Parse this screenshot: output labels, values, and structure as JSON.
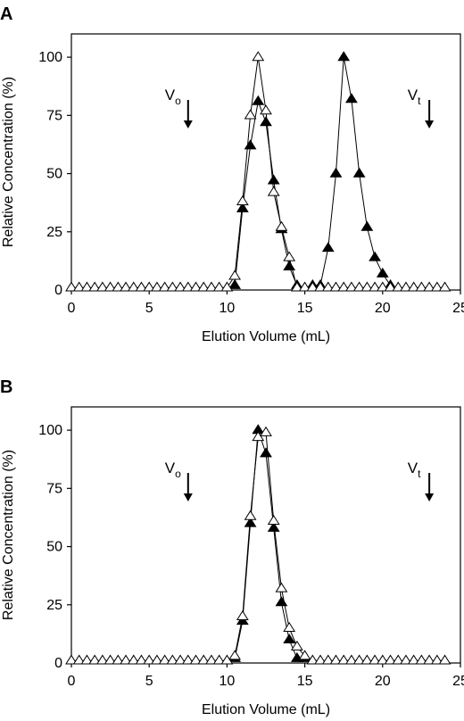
{
  "chart_data": [
    {
      "type": "line",
      "panel_label": "A",
      "xlabel": "Elution Volume (mL)",
      "ylabel": "Relative Concentration (%)",
      "xlim": [
        0,
        25
      ],
      "ylim": [
        0,
        110
      ],
      "x_ticks": [
        0,
        5,
        10,
        15,
        20,
        25
      ],
      "y_ticks": [
        0,
        25,
        50,
        75,
        100
      ],
      "grid": false,
      "legend": "none",
      "annotations": [
        {
          "main": "V",
          "sub": "o",
          "x": 7.5
        },
        {
          "main": "V",
          "sub": "t",
          "x": 23.0
        }
      ],
      "series": [
        {
          "marker": "filled-triangle",
          "points": [
            [
              10.5,
              2
            ],
            [
              11.0,
              35
            ],
            [
              11.5,
              62
            ],
            [
              12.0,
              81
            ],
            [
              12.5,
              72
            ],
            [
              13.0,
              47
            ],
            [
              13.5,
              26
            ],
            [
              14.0,
              10
            ],
            [
              14.5,
              2
            ],
            [
              15.5,
              2
            ],
            [
              16.0,
              2
            ],
            [
              16.5,
              18
            ],
            [
              17.0,
              50
            ],
            [
              17.5,
              100
            ],
            [
              18.0,
              82
            ],
            [
              18.5,
              50
            ],
            [
              19.0,
              27
            ],
            [
              19.5,
              14
            ],
            [
              20.0,
              7
            ],
            [
              20.5,
              2
            ]
          ]
        },
        {
          "marker": "open-triangle",
          "points": [
            [
              0.0,
              1
            ],
            [
              0.5,
              1
            ],
            [
              1.0,
              1
            ],
            [
              1.5,
              1
            ],
            [
              2.0,
              1
            ],
            [
              2.5,
              1
            ],
            [
              3.0,
              1
            ],
            [
              3.5,
              1
            ],
            [
              4.0,
              1
            ],
            [
              4.5,
              1
            ],
            [
              5.0,
              1
            ],
            [
              5.5,
              1
            ],
            [
              6.0,
              1
            ],
            [
              6.5,
              1
            ],
            [
              7.0,
              1
            ],
            [
              7.5,
              1
            ],
            [
              8.0,
              1
            ],
            [
              8.5,
              1
            ],
            [
              9.0,
              1
            ],
            [
              9.5,
              1
            ],
            [
              10.0,
              1
            ],
            [
              10.5,
              6
            ],
            [
              11.0,
              38
            ],
            [
              11.5,
              75
            ],
            [
              12.0,
              100
            ],
            [
              12.5,
              77
            ],
            [
              13.0,
              42
            ],
            [
              13.5,
              27
            ],
            [
              14.0,
              14
            ],
            [
              14.5,
              1
            ],
            [
              15.0,
              1
            ],
            [
              15.5,
              1
            ],
            [
              16.0,
              1
            ],
            [
              16.5,
              1
            ],
            [
              17.0,
              1
            ],
            [
              17.5,
              1
            ],
            [
              18.0,
              1
            ],
            [
              18.5,
              1
            ],
            [
              19.0,
              1
            ],
            [
              19.5,
              1
            ],
            [
              20.0,
              1
            ],
            [
              20.5,
              1
            ],
            [
              21.0,
              1
            ],
            [
              21.5,
              1
            ],
            [
              22.0,
              1
            ],
            [
              22.5,
              1
            ],
            [
              23.0,
              1
            ],
            [
              23.5,
              1
            ],
            [
              24.0,
              1
            ]
          ]
        }
      ]
    },
    {
      "type": "line",
      "panel_label": "B",
      "xlabel": "Elution Volume (mL)",
      "ylabel": "Relative Concentration (%)",
      "xlim": [
        0,
        25
      ],
      "ylim": [
        0,
        110
      ],
      "x_ticks": [
        0,
        5,
        10,
        15,
        20,
        25
      ],
      "y_ticks": [
        0,
        25,
        50,
        75,
        100
      ],
      "grid": false,
      "legend": "none",
      "annotations": [
        {
          "main": "V",
          "sub": "o",
          "x": 7.5
        },
        {
          "main": "V",
          "sub": "t",
          "x": 23.0
        }
      ],
      "series": [
        {
          "marker": "filled-triangle",
          "points": [
            [
              10.5,
              2
            ],
            [
              11.0,
              18
            ],
            [
              11.5,
              60
            ],
            [
              12.0,
              100
            ],
            [
              12.5,
              90
            ],
            [
              13.0,
              58
            ],
            [
              13.5,
              26
            ],
            [
              14.0,
              10
            ],
            [
              14.5,
              2
            ],
            [
              15.0,
              2
            ]
          ]
        },
        {
          "marker": "open-triangle",
          "points": [
            [
              0.0,
              1
            ],
            [
              0.5,
              1
            ],
            [
              1.0,
              1
            ],
            [
              1.5,
              1
            ],
            [
              2.0,
              1
            ],
            [
              2.5,
              1
            ],
            [
              3.0,
              1
            ],
            [
              3.5,
              1
            ],
            [
              4.0,
              1
            ],
            [
              4.5,
              1
            ],
            [
              5.0,
              1
            ],
            [
              5.5,
              1
            ],
            [
              6.0,
              1
            ],
            [
              6.5,
              1
            ],
            [
              7.0,
              1
            ],
            [
              7.5,
              1
            ],
            [
              8.0,
              1
            ],
            [
              8.5,
              1
            ],
            [
              9.0,
              1
            ],
            [
              9.5,
              1
            ],
            [
              10.0,
              1
            ],
            [
              10.5,
              3
            ],
            [
              11.0,
              20
            ],
            [
              11.5,
              63
            ],
            [
              12.0,
              97
            ],
            [
              12.5,
              99
            ],
            [
              13.0,
              61
            ],
            [
              13.5,
              32
            ],
            [
              14.0,
              15
            ],
            [
              14.5,
              7
            ],
            [
              15.0,
              3
            ],
            [
              15.5,
              1
            ],
            [
              16.0,
              1
            ],
            [
              16.5,
              1
            ],
            [
              17.0,
              1
            ],
            [
              17.5,
              1
            ],
            [
              18.0,
              1
            ],
            [
              18.5,
              1
            ],
            [
              19.0,
              1
            ],
            [
              19.5,
              1
            ],
            [
              20.0,
              1
            ],
            [
              20.5,
              1
            ],
            [
              21.0,
              1
            ],
            [
              21.5,
              1
            ],
            [
              22.0,
              1
            ],
            [
              22.5,
              1
            ],
            [
              23.0,
              1
            ],
            [
              23.5,
              1
            ],
            [
              24.0,
              1
            ]
          ]
        }
      ]
    }
  ]
}
